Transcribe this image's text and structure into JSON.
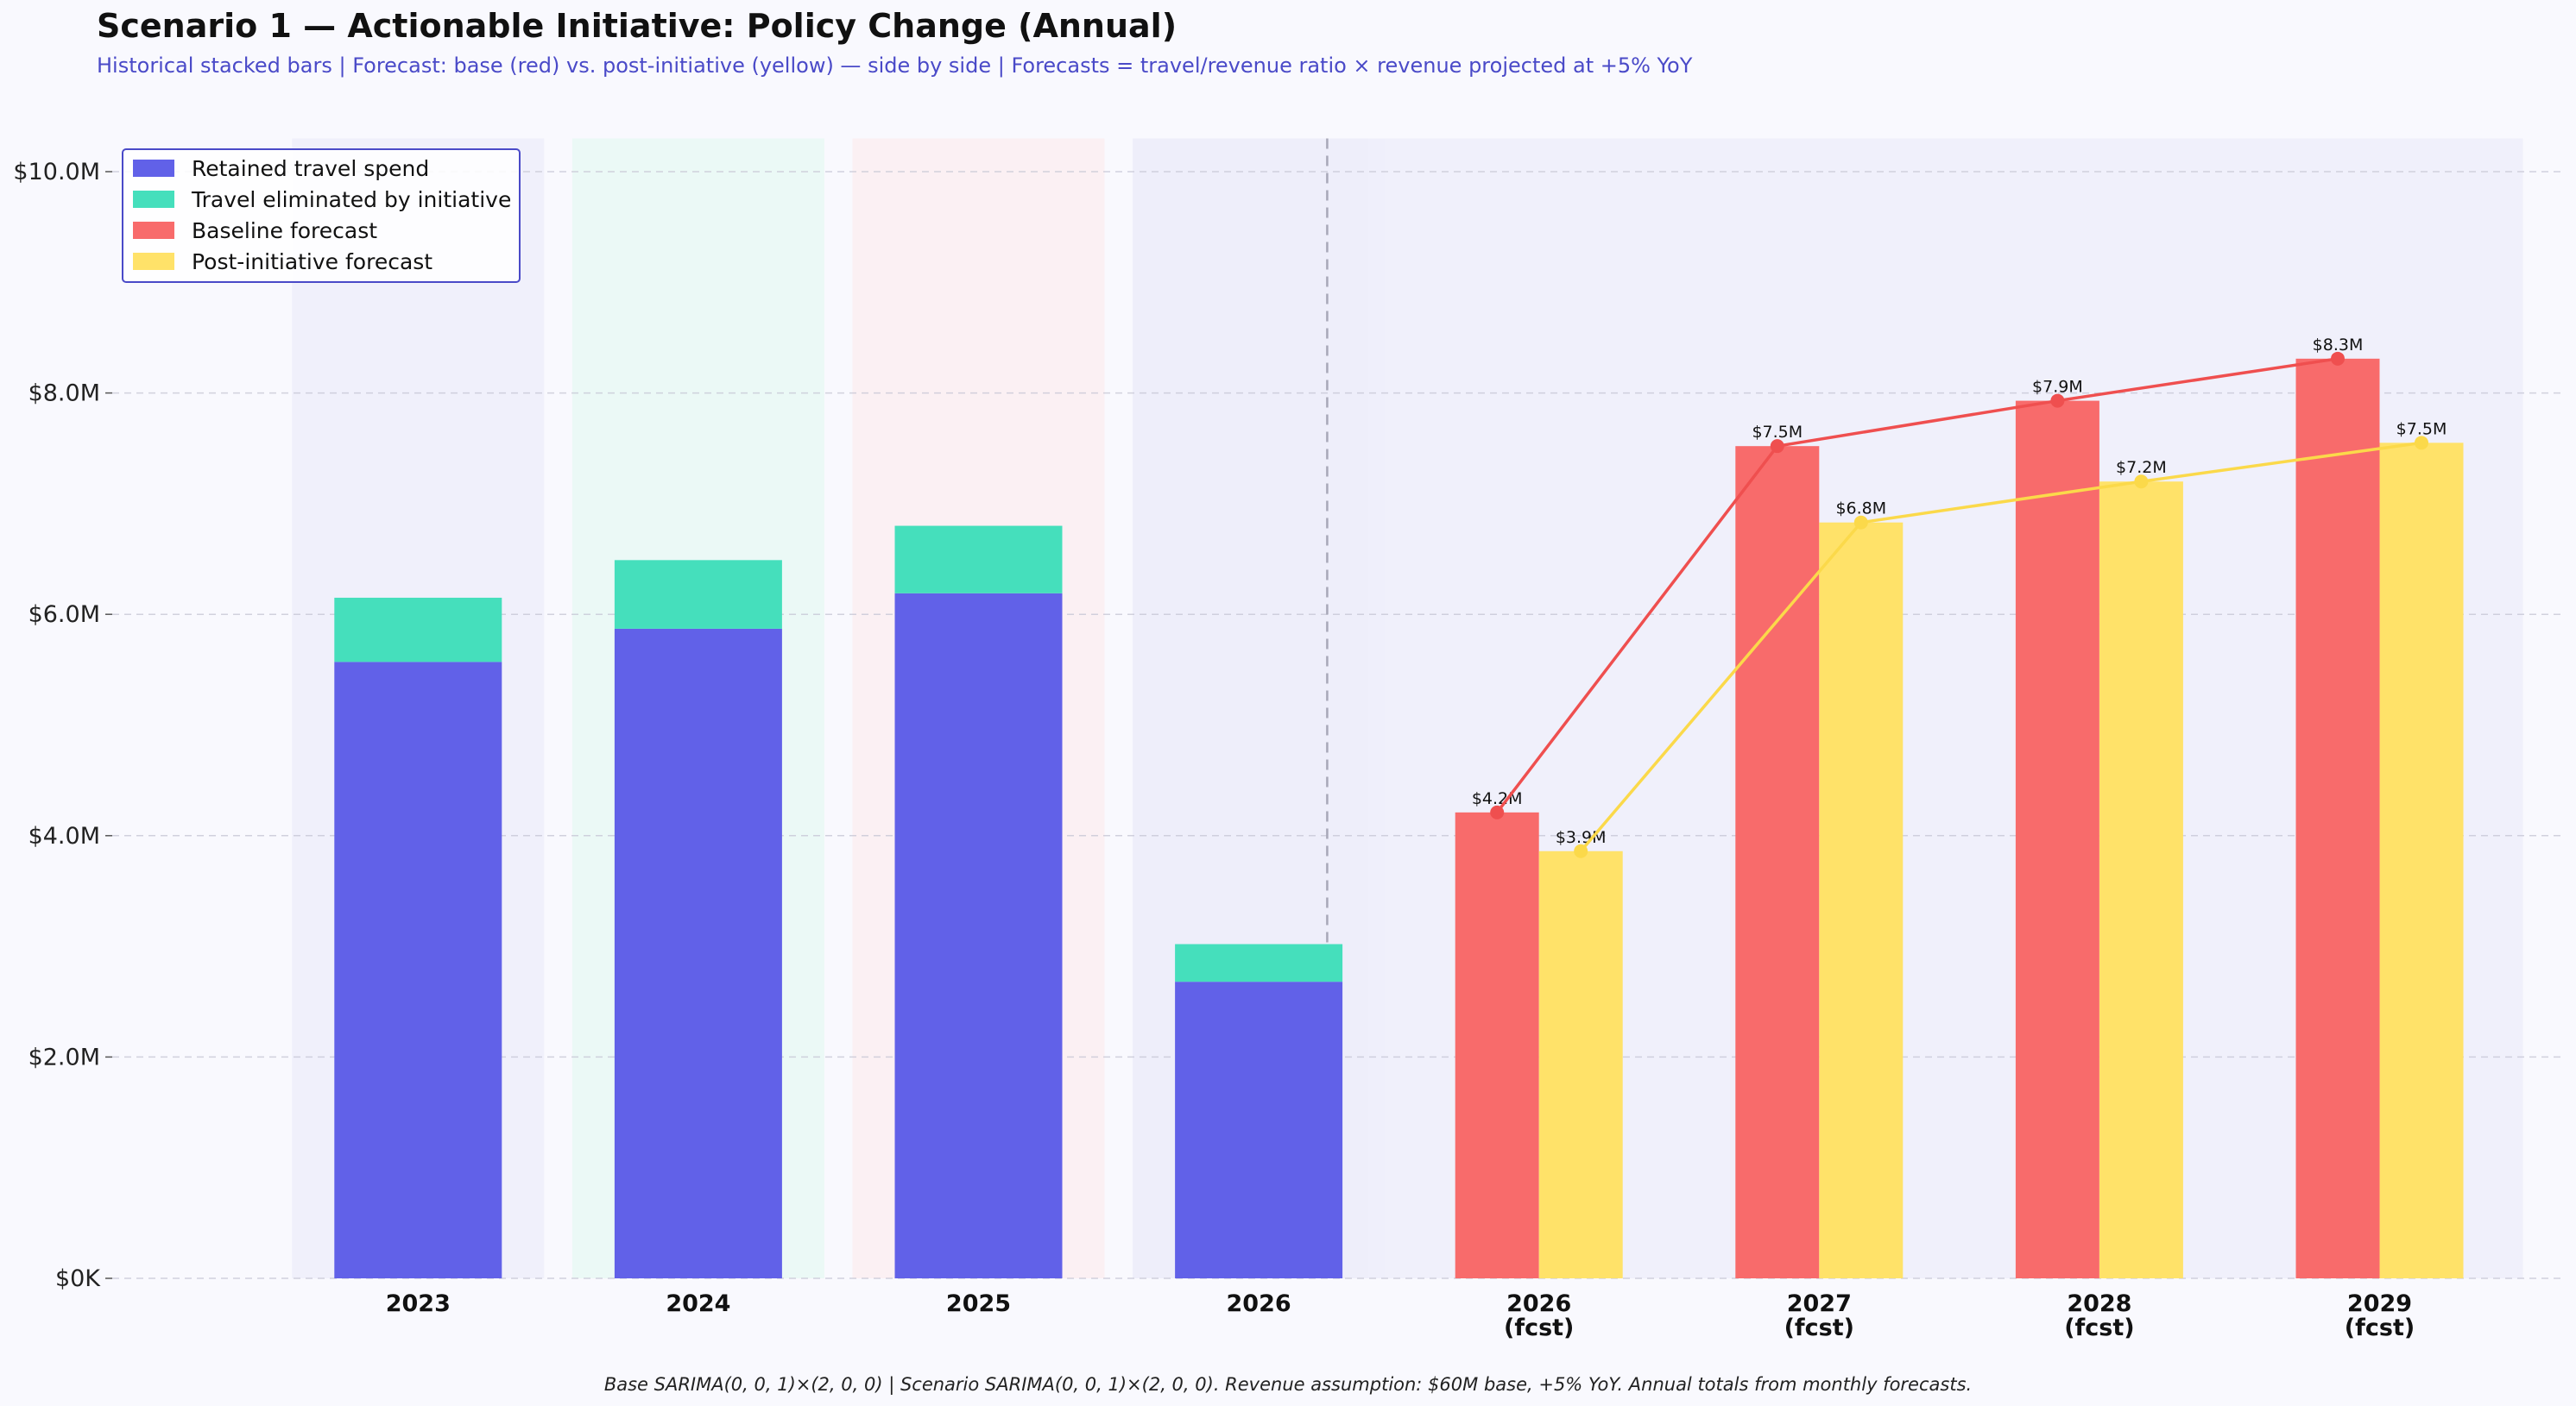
{
  "title": "Scenario 1 — Actionable Initiative: Policy Change (Annual)",
  "subtitle": "Historical stacked bars | Forecast: base (red) vs. post-initiative (yellow) — side by side  |  Forecasts = travel/revenue ratio × revenue projected at +5% YoY",
  "footer": "Base SARIMA(0, 0, 1)×(2, 0, 0) | Scenario SARIMA(0, 0, 1)×(2, 0, 0).  Revenue assumption: $60M base, +5% YoY.  Annual totals from monthly forecasts.",
  "colors": {
    "retained": "#6161e8",
    "eliminated": "#45dfbc",
    "baseline": "#f86b6b",
    "post": "#ffe269",
    "baseline_line": "#ef4f4f",
    "post_line": "#fbd94a"
  },
  "chart_data": {
    "type": "bar",
    "ylim": [
      0,
      10.3
    ],
    "yunit": "$M",
    "yticks": [
      {
        "value": 0,
        "label": "$0K"
      },
      {
        "value": 2,
        "label": "$2.0M"
      },
      {
        "value": 4,
        "label": "$4.0M"
      },
      {
        "value": 6,
        "label": "$6.0M"
      },
      {
        "value": 8,
        "label": "$8.0M"
      },
      {
        "value": 10,
        "label": "$10.0M"
      }
    ],
    "grid": true,
    "legend_position": "top-left",
    "legend": [
      {
        "name": "Retained travel spend",
        "color": "#6161e8"
      },
      {
        "name": "Travel eliminated by initiative",
        "color": "#45dfbc"
      },
      {
        "name": "Baseline forecast",
        "color": "#f86b6b"
      },
      {
        "name": "Post-initiative forecast",
        "color": "#ffe269"
      }
    ],
    "historical": {
      "categories": [
        "2023",
        "2024",
        "2025",
        "2026"
      ],
      "series": [
        {
          "name": "Retained travel spend",
          "values": [
            5.57,
            5.87,
            6.19,
            2.68
          ]
        },
        {
          "name": "Travel eliminated by initiative",
          "values": [
            0.58,
            0.62,
            0.61,
            0.34
          ]
        }
      ]
    },
    "forecast": {
      "categories": [
        {
          "year": "2026",
          "sub": "(fcst)"
        },
        {
          "year": "2027",
          "sub": "(fcst)"
        },
        {
          "year": "2028",
          "sub": "(fcst)"
        },
        {
          "year": "2029",
          "sub": "(fcst)"
        }
      ],
      "series": [
        {
          "name": "Baseline forecast",
          "values": [
            4.21,
            7.52,
            7.93,
            8.31
          ],
          "labels": [
            "$4.2M",
            "$7.5M",
            "$7.9M",
            "$8.3M"
          ]
        },
        {
          "name": "Post-initiative forecast",
          "values": [
            3.86,
            6.83,
            7.2,
            7.55
          ],
          "labels": [
            "$3.9M",
            "$6.8M",
            "$7.2M",
            "$7.5M"
          ]
        }
      ]
    }
  }
}
